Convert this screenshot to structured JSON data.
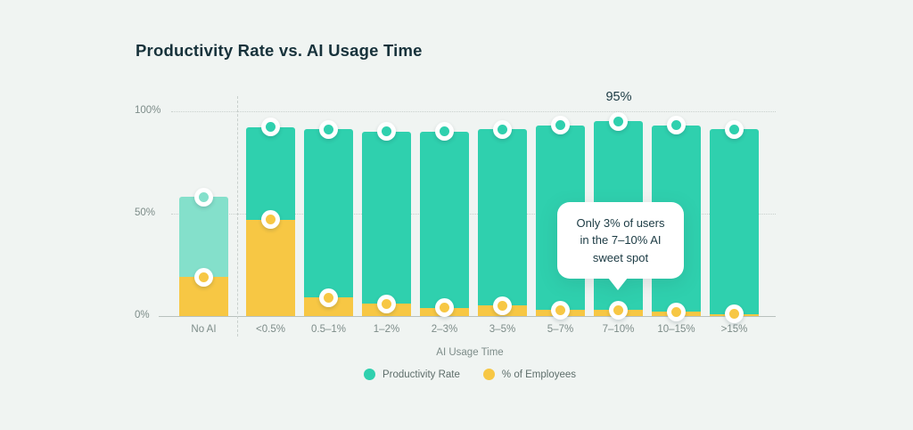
{
  "title": "Productivity Rate vs. AI Usage Time",
  "colors": {
    "background": "#F0F4F2",
    "productivity_teal": "#2FD0AE",
    "productivity_teal_muted": "#84E0CB",
    "employees_yellow": "#F7C744",
    "dark_text": "#1B3A43",
    "gray_text": "#7D8C89",
    "callout_bg": "#FFFFFF"
  },
  "chart_data": {
    "type": "bar",
    "title": "Productivity Rate vs. AI Usage Time",
    "xlabel": "AI Usage Time",
    "ylabel": "",
    "ylim": [
      0,
      100
    ],
    "yticks": [
      "0%",
      "50%",
      "100%"
    ],
    "grid": "dotted-horizontal",
    "legend_position": "bottom",
    "categories": [
      "No AI",
      "<0.5%",
      "0.5–1%",
      "1–2%",
      "2–3%",
      "3–5%",
      "5–7%",
      "7–10%",
      "10–15%",
      ">15%"
    ],
    "series": [
      {
        "name": "Productivity Rate",
        "color": "#2FD0AE",
        "muted_category": "No AI",
        "muted_color": "#84E0CB",
        "values": [
          58,
          92,
          91,
          90,
          90,
          91,
          93,
          95,
          93,
          91
        ]
      },
      {
        "name": "% of Employees",
        "color": "#F7C744",
        "values": [
          19,
          47,
          9,
          6,
          4,
          5,
          3,
          3,
          2,
          1
        ]
      }
    ],
    "highlight": {
      "category": "7–10%",
      "value_label": "95%"
    },
    "annotation": "Only 3% of users in the 7–10% AI sweet spot"
  },
  "callout": {
    "lines": [
      "Only 3% of users",
      "in the 7–10% AI",
      "sweet spot"
    ]
  }
}
